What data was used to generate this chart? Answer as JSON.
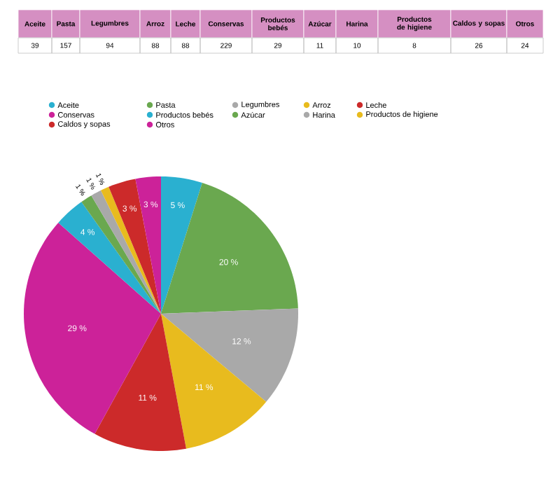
{
  "chart_data": [
    {
      "type": "other",
      "data_labels": true,
      "categories": [
        "Aceite",
        "Pasta",
        "Legumbres",
        "Arroz",
        "Leche",
        "Conservas",
        "Productos bebés",
        "Azúcar",
        "Harina",
        "Productos de higiene",
        "Caldos y sopas",
        "Otros"
      ],
      "values": [
        39,
        157,
        94,
        88,
        88,
        229,
        29,
        11,
        10,
        8,
        26,
        24
      ]
    },
    {
      "type": "pie",
      "categories": [
        "Aceite",
        "Pasta",
        "Legumbres",
        "Arroz",
        "Leche",
        "Conservas",
        "Productos bebés",
        "Azúcar",
        "Harina",
        "Productos de higiene",
        "Caldos y sopas",
        "Otros"
      ],
      "values": [
        4.86,
        19.53,
        11.71,
        10.96,
        10.96,
        28.52,
        3.61,
        1.37,
        1.25,
        1.0,
        3.24,
        2.99
      ],
      "colors": [
        "#2ab0d0",
        "#6aa84f",
        "#a9a9a9",
        "#e8bb1e",
        "#cc2a2a",
        "#cc2299",
        "#2ab0d0",
        "#6aa84f",
        "#a9a9a9",
        "#e8bb1e",
        "#cc2a2a",
        "#cc2299"
      ],
      "value_labels": [
        "5 %",
        "20 %",
        "12 %",
        "11 %",
        "11 %",
        "29 %",
        "4 %",
        "1 %",
        "1 %",
        "1 %",
        "3 %",
        "3 %"
      ],
      "legend": "top"
    }
  ]
}
